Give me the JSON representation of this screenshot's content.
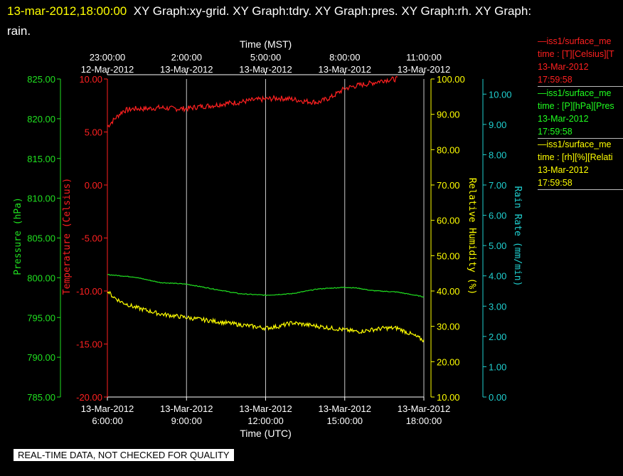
{
  "header": {
    "timestamp": "13-mar-2012,18:00:00",
    "line1": "XY Graph:xy-grid.  XY Graph:tdry.  XY Graph:pres.  XY Graph:rh.  XY Graph:",
    "line2": "rain."
  },
  "legend": [
    {
      "name": "—iss1/surface_me",
      "units": "time : [T][Celsius][T",
      "date": "13-Mar-2012",
      "time": "17:59:58",
      "color": "#ff2020"
    },
    {
      "name": "—iss1/surface_me",
      "units": "time : [P][hPa][Pres",
      "date": "13-Mar-2012",
      "time": "17:59:58",
      "color": "#20ff20"
    },
    {
      "name": "—iss1/surface_me",
      "units": "time : [rh][%][Relati",
      "date": "13-Mar-2012",
      "time": "17:59:58",
      "color": "#ffff00"
    }
  ],
  "banner": "REAL-TIME DATA, NOT CHECKED FOR QUALITY",
  "chart_data": {
    "type": "line",
    "x_bottom_title": "Time (UTC)",
    "x_top_title": "Time (MST)",
    "x_range": [
      6,
      18
    ],
    "bottom_ticks": [
      {
        "x": 6,
        "l1": "13-Mar-2012",
        "l2": "6:00:00"
      },
      {
        "x": 9,
        "l1": "13-Mar-2012",
        "l2": "9:00:00"
      },
      {
        "x": 12,
        "l1": "13-Mar-2012",
        "l2": "12:00:00"
      },
      {
        "x": 15,
        "l1": "13-Mar-2012",
        "l2": "15:00:00"
      },
      {
        "x": 18,
        "l1": "13-Mar-2012",
        "l2": "18:00:00"
      }
    ],
    "top_ticks": [
      {
        "x": 6,
        "l1": "23:00:00",
        "l2": "12-Mar-2012"
      },
      {
        "x": 9,
        "l1": "2:00:00",
        "l2": "13-Mar-2012"
      },
      {
        "x": 12,
        "l1": "5:00:00",
        "l2": "13-Mar-2012"
      },
      {
        "x": 15,
        "l1": "8:00:00",
        "l2": "13-Mar-2012"
      },
      {
        "x": 18,
        "l1": "11:00:00",
        "l2": "13-Mar-2012"
      }
    ],
    "axes": {
      "pressure": {
        "title": "Pressure (hPa)",
        "color": "#20e020",
        "ylim": [
          785,
          825
        ],
        "ticks": [
          "785.00",
          "790.00",
          "795.00",
          "800.00",
          "805.00",
          "810.00",
          "815.00",
          "820.00",
          "825.00"
        ]
      },
      "temperature": {
        "title": "Temperature (Celsius)",
        "color": "#ff2020",
        "ylim": [
          -20,
          10
        ],
        "ticks": [
          "-20.00",
          "-15.00",
          "-10.00",
          "-5.00",
          "0.00",
          "5.00",
          "10.00"
        ]
      },
      "humidity": {
        "title": "Relative Humidity (%)",
        "color": "#ffff00",
        "ylim": [
          10,
          100
        ],
        "ticks": [
          "10.00",
          "20.00",
          "30.00",
          "40.00",
          "50.00",
          "60.00",
          "70.00",
          "80.00",
          "90.00",
          "100.00"
        ]
      },
      "rain": {
        "title": "Rain Rate (mm/min)",
        "color": "#20d0d0",
        "ylim": [
          0,
          10.5
        ],
        "ticks": [
          "0.00",
          "1.00",
          "2.00",
          "3.00",
          "4.00",
          "5.00",
          "6.00",
          "7.00",
          "8.00",
          "9.00",
          "10.00"
        ]
      }
    },
    "series": [
      {
        "axis": "temperature",
        "color": "#ff2020",
        "noise": 0.25,
        "x": [
          6.0,
          6.3,
          6.6,
          7.0,
          7.5,
          8.0,
          8.5,
          9.0,
          9.5,
          10.0,
          10.5,
          11.0,
          11.5,
          12.0,
          12.5,
          13.0,
          13.5,
          14.0,
          14.5,
          15.0,
          15.5,
          16.0,
          16.5,
          17.0
        ],
        "y": [
          5.5,
          6.3,
          7.0,
          7.2,
          7.2,
          7.3,
          7.2,
          7.2,
          7.4,
          7.5,
          7.7,
          7.8,
          8.0,
          8.1,
          8.2,
          8.1,
          7.9,
          7.8,
          8.3,
          9.1,
          9.4,
          9.6,
          9.9,
          10.0
        ]
      },
      {
        "axis": "pressure",
        "color": "#20e020",
        "noise": 0.05,
        "x": [
          6.0,
          7.0,
          8.0,
          9.0,
          10.0,
          11.0,
          12.0,
          13.0,
          14.0,
          15.0,
          15.5,
          16.0,
          17.0,
          18.0
        ],
        "y": [
          800.4,
          800.1,
          799.4,
          799.2,
          798.6,
          798.0,
          797.8,
          798.0,
          798.6,
          798.8,
          798.7,
          798.4,
          798.2,
          797.6
        ]
      },
      {
        "axis": "humidity",
        "color": "#ffff00",
        "noise": 0.6,
        "x": [
          6.0,
          6.2,
          6.5,
          7.0,
          7.5,
          8.0,
          8.5,
          9.0,
          9.5,
          10.0,
          10.5,
          11.0,
          11.5,
          12.0,
          12.5,
          13.0,
          13.5,
          14.0,
          14.5,
          15.0,
          15.5,
          16.0,
          16.5,
          17.0,
          17.3,
          17.6,
          18.0
        ],
        "y": [
          40.0,
          38.5,
          37.0,
          35.5,
          34.5,
          33.5,
          33.0,
          32.5,
          32.0,
          31.5,
          31.0,
          30.5,
          30.0,
          29.5,
          30.0,
          31.0,
          30.5,
          30.0,
          29.5,
          29.0,
          28.5,
          29.0,
          29.5,
          29.5,
          28.5,
          27.5,
          26.0
        ]
      }
    ]
  }
}
